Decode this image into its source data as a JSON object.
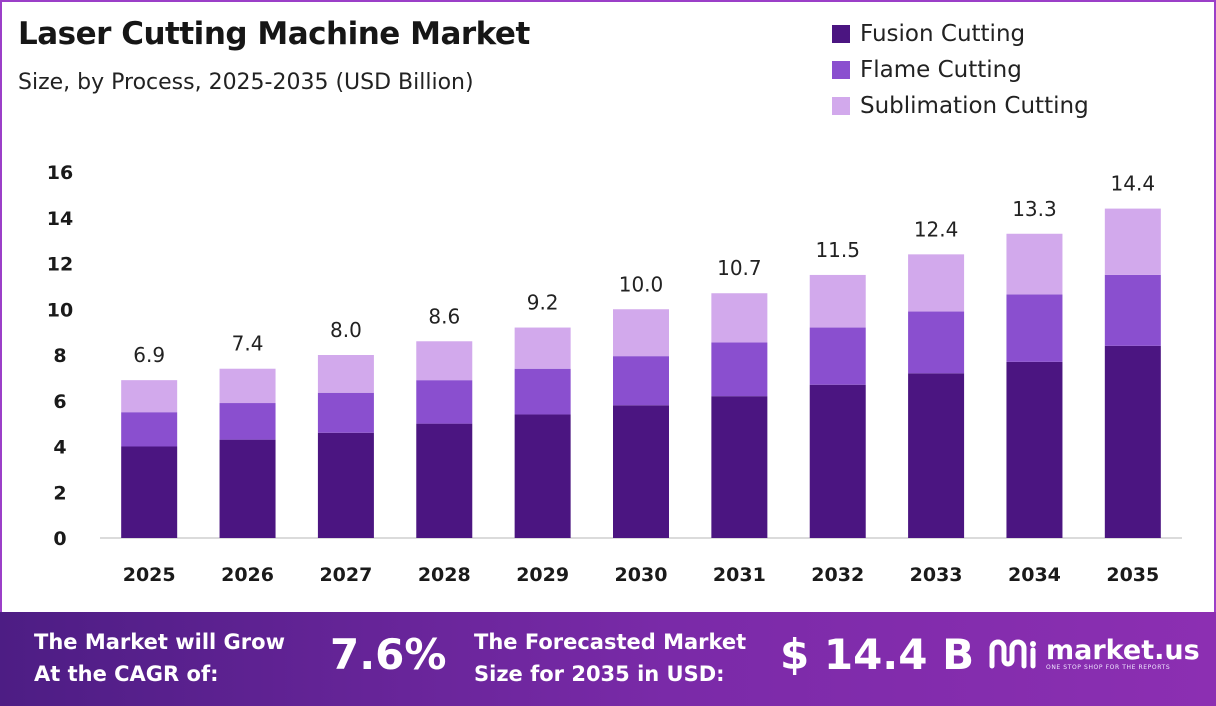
{
  "header": {
    "title": "Laser Cutting Machine Market",
    "subtitle": "Size, by Process, 2025-2035 (USD Billion)"
  },
  "legend": [
    {
      "label": "Fusion Cutting",
      "color": "#4b1581"
    },
    {
      "label": "Flame Cutting",
      "color": "#8a4fcf"
    },
    {
      "label": "Sublimation Cutting",
      "color": "#d2a9ec"
    }
  ],
  "chart_data": {
    "type": "bar",
    "stacked": true,
    "categories": [
      "2025",
      "2026",
      "2027",
      "2028",
      "2029",
      "2030",
      "2031",
      "2032",
      "2033",
      "2034",
      "2035"
    ],
    "series": [
      {
        "name": "Fusion Cutting",
        "values": [
          4.0,
          4.3,
          4.6,
          5.0,
          5.4,
          5.8,
          6.2,
          6.7,
          7.2,
          7.7,
          8.4
        ],
        "color": "#4b1581"
      },
      {
        "name": "Flame Cutting",
        "values": [
          1.5,
          1.6,
          1.75,
          1.9,
          2.0,
          2.15,
          2.35,
          2.5,
          2.7,
          2.95,
          3.1
        ],
        "color": "#8a4fcf"
      },
      {
        "name": "Sublimation Cutting",
        "values": [
          1.4,
          1.5,
          1.65,
          1.7,
          1.8,
          2.05,
          2.15,
          2.3,
          2.5,
          2.65,
          2.9
        ],
        "color": "#d2a9ec"
      }
    ],
    "totals": [
      "6.9",
      "7.4",
      "8.0",
      "8.6",
      "9.2",
      "10.0",
      "10.7",
      "11.5",
      "12.4",
      "13.3",
      "14.4"
    ],
    "yticks": [
      "0",
      "2",
      "4",
      "6",
      "8",
      "10",
      "12",
      "14",
      "16"
    ],
    "ylim": [
      0,
      16
    ],
    "grid": false,
    "legend_position": "top-right"
  },
  "banner": {
    "cagr_text_line1": "The Market will Grow",
    "cagr_text_line2": "At the CAGR of:",
    "cagr_value": "7.6%",
    "forecast_text_line1": "The Forecasted Market",
    "forecast_text_line2": "Size for 2035 in USD:",
    "forecast_value": "$ 14.4 B",
    "logo_text": "market.us",
    "logo_tagline": "ONE STOP SHOP FOR THE REPORTS"
  }
}
